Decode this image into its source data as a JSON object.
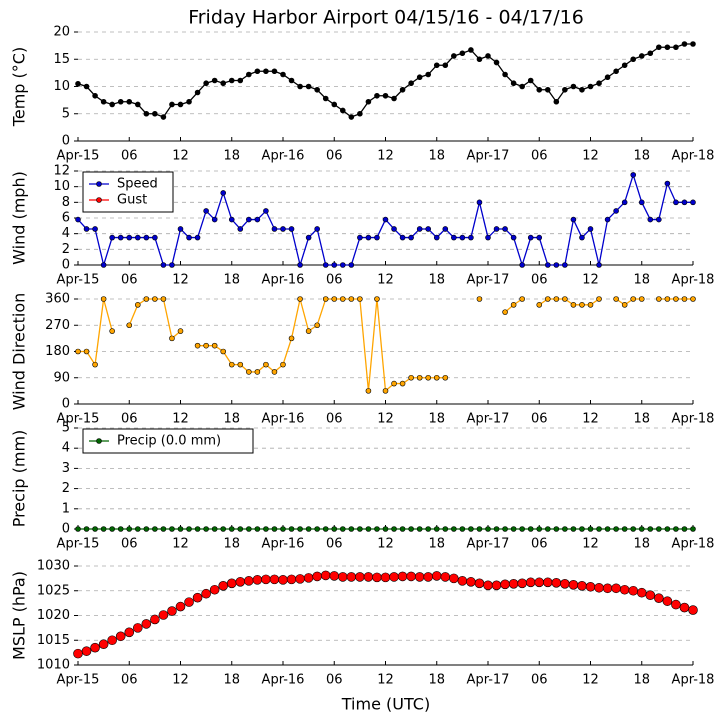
{
  "chart_data": [
    {
      "type": "line",
      "title": "Friday Harbor Airport 04/15/16 - 04/17/16",
      "ylabel": "Temp (°C)",
      "x": [
        0,
        1,
        2,
        3,
        4,
        5,
        6,
        7,
        8,
        9,
        10,
        11,
        12,
        13,
        14,
        15,
        16,
        17,
        18,
        19,
        20,
        21,
        22,
        23,
        24,
        25,
        26,
        27,
        28,
        29,
        30,
        31,
        32,
        33,
        34,
        35,
        36,
        37,
        38,
        39,
        40,
        41,
        42,
        43,
        44,
        45,
        46,
        47,
        48,
        49,
        50,
        51,
        52,
        53,
        54,
        55,
        56,
        57,
        58,
        59,
        60,
        61,
        62,
        63,
        64,
        65,
        66,
        67,
        68,
        69,
        70,
        71,
        72
      ],
      "xlim": [
        0,
        72
      ],
      "xticks": [
        {
          "value": 0,
          "label": "Apr-15"
        },
        {
          "value": 6,
          "label": "06"
        },
        {
          "value": 12,
          "label": "12"
        },
        {
          "value": 18,
          "label": "18"
        },
        {
          "value": 24,
          "label": "Apr-16"
        },
        {
          "value": 30,
          "label": "06"
        },
        {
          "value": 36,
          "label": "12"
        },
        {
          "value": 42,
          "label": "18"
        },
        {
          "value": 48,
          "label": "Apr-17"
        },
        {
          "value": 54,
          "label": "06"
        },
        {
          "value": 60,
          "label": "12"
        },
        {
          "value": 66,
          "label": "18"
        },
        {
          "value": 72,
          "label": "Apr-18"
        }
      ],
      "ylim": [
        0,
        20
      ],
      "yticks": [
        0,
        5,
        10,
        15,
        20
      ],
      "grid": true,
      "series": [
        {
          "color": "#000000",
          "marker_size": 2.5,
          "line": true,
          "values": [
            10.5,
            10,
            8.3,
            7.2,
            6.7,
            7.2,
            7.2,
            6.7,
            5,
            5,
            4.4,
            6.7,
            6.7,
            7.2,
            8.9,
            10.6,
            11.1,
            10.6,
            11.1,
            11.1,
            12.2,
            12.8,
            12.8,
            12.8,
            12.2,
            11.1,
            10,
            10,
            9.4,
            7.8,
            6.7,
            5.6,
            4.4,
            5,
            7.2,
            8.3,
            8.3,
            7.8,
            9.4,
            10.6,
            11.7,
            12.2,
            13.9,
            13.9,
            15.6,
            16.1,
            16.7,
            15,
            15.6,
            14.4,
            12.2,
            10.6,
            10,
            11.1,
            9.4,
            9.4,
            7.2,
            9.4,
            10,
            9.4,
            10,
            10.6,
            11.7,
            12.8,
            13.9,
            15,
            15.6,
            16.1,
            17.2,
            17.2,
            17.2,
            17.8,
            17.8
          ]
        }
      ]
    },
    {
      "type": "line",
      "ylabel": "Wind (mph)",
      "legend": "upper left",
      "x": [
        0,
        1,
        2,
        3,
        4,
        5,
        6,
        7,
        8,
        9,
        10,
        11,
        12,
        13,
        14,
        15,
        16,
        17,
        18,
        19,
        20,
        21,
        22,
        23,
        24,
        25,
        26,
        27,
        28,
        29,
        30,
        31,
        32,
        33,
        34,
        35,
        36,
        37,
        38,
        39,
        40,
        41,
        42,
        43,
        44,
        45,
        46,
        47,
        48,
        49,
        50,
        51,
        52,
        53,
        54,
        55,
        56,
        57,
        58,
        59,
        60,
        61,
        62,
        63,
        64,
        65,
        66,
        67,
        68,
        69,
        70,
        71,
        72
      ],
      "xlim": [
        0,
        72
      ],
      "xticks": [
        {
          "value": 0,
          "label": "Apr-15"
        },
        {
          "value": 6,
          "label": "06"
        },
        {
          "value": 12,
          "label": "12"
        },
        {
          "value": 18,
          "label": "18"
        },
        {
          "value": 24,
          "label": "Apr-16"
        },
        {
          "value": 30,
          "label": "06"
        },
        {
          "value": 36,
          "label": "12"
        },
        {
          "value": 42,
          "label": "18"
        },
        {
          "value": 48,
          "label": "Apr-17"
        },
        {
          "value": 54,
          "label": "06"
        },
        {
          "value": 60,
          "label": "12"
        },
        {
          "value": 66,
          "label": "18"
        },
        {
          "value": 72,
          "label": "Apr-18"
        }
      ],
      "ylim": [
        0,
        12
      ],
      "yticks": [
        0,
        2,
        4,
        6,
        8,
        10,
        12
      ],
      "grid": true,
      "series": [
        {
          "name": "Speed",
          "color": "#0000cc",
          "marker_size": 2.5,
          "line": true,
          "values": [
            5.8,
            4.6,
            4.6,
            0,
            3.5,
            3.5,
            3.5,
            3.5,
            3.5,
            3.5,
            0,
            0,
            4.6,
            3.5,
            3.5,
            6.9,
            5.8,
            9.2,
            5.8,
            4.6,
            5.8,
            5.8,
            6.9,
            4.6,
            4.6,
            4.6,
            0,
            3.5,
            4.6,
            0,
            0,
            0,
            0,
            3.5,
            3.5,
            3.5,
            5.8,
            4.6,
            3.5,
            3.5,
            4.6,
            4.6,
            3.5,
            4.6,
            3.5,
            3.5,
            3.5,
            8,
            3.5,
            4.6,
            4.6,
            3.5,
            0,
            3.5,
            3.5,
            0,
            0,
            0,
            5.8,
            3.5,
            4.6,
            0,
            5.8,
            6.9,
            8,
            11.5,
            8,
            5.8,
            5.8,
            10.4,
            8,
            8,
            8
          ]
        },
        {
          "name": "Gust",
          "color": "#ff0000",
          "marker_size": 2.5,
          "line": true,
          "values": [
            null,
            null,
            null,
            null,
            null,
            null,
            null,
            null,
            null,
            null,
            null,
            null,
            null,
            null,
            null,
            null,
            null,
            null,
            null,
            null,
            null,
            null,
            null,
            null,
            null,
            null,
            null,
            null,
            null,
            null,
            null,
            null,
            null,
            null,
            null,
            null,
            null,
            null,
            null,
            null,
            null,
            null,
            null,
            null,
            null,
            null,
            null,
            null,
            null,
            null,
            null,
            null,
            null,
            null,
            null,
            null,
            null,
            null,
            null,
            null,
            null,
            null,
            null,
            null,
            null,
            null,
            null,
            null,
            null,
            null,
            null,
            null,
            null
          ]
        }
      ]
    },
    {
      "type": "line",
      "ylabel": "Wind Direction",
      "x": [
        0,
        1,
        2,
        3,
        4,
        5,
        6,
        7,
        8,
        9,
        10,
        11,
        12,
        13,
        14,
        15,
        16,
        17,
        18,
        19,
        20,
        21,
        22,
        23,
        24,
        25,
        26,
        27,
        28,
        29,
        30,
        31,
        32,
        33,
        34,
        35,
        36,
        37,
        38,
        39,
        40,
        41,
        42,
        43,
        44,
        45,
        46,
        47,
        48,
        49,
        50,
        51,
        52,
        53,
        54,
        55,
        56,
        57,
        58,
        59,
        60,
        61,
        62,
        63,
        64,
        65,
        66,
        67,
        68,
        69,
        70,
        71,
        72
      ],
      "xlim": [
        0,
        72
      ],
      "xticks": [
        {
          "value": 0,
          "label": "Apr-15"
        },
        {
          "value": 6,
          "label": "06"
        },
        {
          "value": 12,
          "label": "12"
        },
        {
          "value": 18,
          "label": "18"
        },
        {
          "value": 24,
          "label": "Apr-16"
        },
        {
          "value": 30,
          "label": "06"
        },
        {
          "value": 36,
          "label": "12"
        },
        {
          "value": 42,
          "label": "18"
        },
        {
          "value": 48,
          "label": "Apr-17"
        },
        {
          "value": 54,
          "label": "06"
        },
        {
          "value": 60,
          "label": "12"
        },
        {
          "value": 66,
          "label": "18"
        },
        {
          "value": 72,
          "label": "Apr-18"
        }
      ],
      "ylim": [
        0,
        360
      ],
      "yticks": [
        0,
        90,
        180,
        270,
        360
      ],
      "grid": true,
      "series": [
        {
          "color": "#ffa500",
          "marker_size": 2.5,
          "line": true,
          "values": [
            180,
            180,
            135,
            360,
            250,
            null,
            270,
            340,
            360,
            360,
            360,
            225,
            250,
            null,
            200,
            200,
            200,
            180,
            135,
            135,
            110,
            110,
            135,
            110,
            135,
            225,
            360,
            250,
            270,
            360,
            360,
            360,
            360,
            360,
            45,
            360,
            45,
            70,
            70,
            90,
            90,
            90,
            90,
            90,
            null,
            null,
            null,
            360,
            null,
            null,
            315,
            340,
            360,
            null,
            340,
            360,
            360,
            360,
            340,
            340,
            340,
            360,
            null,
            360,
            340,
            360,
            360,
            null,
            360,
            360,
            360,
            360,
            360
          ]
        }
      ]
    },
    {
      "type": "line",
      "ylabel": "Precip (mm)",
      "legend": "upper left",
      "x": [
        0,
        1,
        2,
        3,
        4,
        5,
        6,
        7,
        8,
        9,
        10,
        11,
        12,
        13,
        14,
        15,
        16,
        17,
        18,
        19,
        20,
        21,
        22,
        23,
        24,
        25,
        26,
        27,
        28,
        29,
        30,
        31,
        32,
        33,
        34,
        35,
        36,
        37,
        38,
        39,
        40,
        41,
        42,
        43,
        44,
        45,
        46,
        47,
        48,
        49,
        50,
        51,
        52,
        53,
        54,
        55,
        56,
        57,
        58,
        59,
        60,
        61,
        62,
        63,
        64,
        65,
        66,
        67,
        68,
        69,
        70,
        71,
        72
      ],
      "xlim": [
        0,
        72
      ],
      "xticks": [
        {
          "value": 0,
          "label": "Apr-15"
        },
        {
          "value": 6,
          "label": "06"
        },
        {
          "value": 12,
          "label": "12"
        },
        {
          "value": 18,
          "label": "18"
        },
        {
          "value": 24,
          "label": "Apr-16"
        },
        {
          "value": 30,
          "label": "06"
        },
        {
          "value": 36,
          "label": "12"
        },
        {
          "value": 42,
          "label": "18"
        },
        {
          "value": 48,
          "label": "Apr-17"
        },
        {
          "value": 54,
          "label": "06"
        },
        {
          "value": 60,
          "label": "12"
        },
        {
          "value": 66,
          "label": "18"
        },
        {
          "value": 72,
          "label": "Apr-18"
        }
      ],
      "ylim": [
        0,
        5
      ],
      "yticks": [
        0,
        1,
        2,
        3,
        4,
        5
      ],
      "grid": true,
      "series": [
        {
          "name": "Precip (0.0 mm)",
          "color": "#006400",
          "marker_size": 2.5,
          "line": true,
          "values": [
            0,
            0,
            0,
            0,
            0,
            0,
            0,
            0,
            0,
            0,
            0,
            0,
            0,
            0,
            0,
            0,
            0,
            0,
            0,
            0,
            0,
            0,
            0,
            0,
            0,
            0,
            0,
            0,
            0,
            0,
            0,
            0,
            0,
            0,
            0,
            0,
            0,
            0,
            0,
            0,
            0,
            0,
            0,
            0,
            0,
            0,
            0,
            0,
            0,
            0,
            0,
            0,
            0,
            0,
            0,
            0,
            0,
            0,
            0,
            0,
            0,
            0,
            0,
            0,
            0,
            0,
            0,
            0,
            0,
            0,
            0,
            0,
            0
          ]
        }
      ]
    },
    {
      "type": "line",
      "ylabel": "MSLP (hPa)",
      "xlabel": "Time (UTC)",
      "x": [
        0,
        1,
        2,
        3,
        4,
        5,
        6,
        7,
        8,
        9,
        10,
        11,
        12,
        13,
        14,
        15,
        16,
        17,
        18,
        19,
        20,
        21,
        22,
        23,
        24,
        25,
        26,
        27,
        28,
        29,
        30,
        31,
        32,
        33,
        34,
        35,
        36,
        37,
        38,
        39,
        40,
        41,
        42,
        43,
        44,
        45,
        46,
        47,
        48,
        49,
        50,
        51,
        52,
        53,
        54,
        55,
        56,
        57,
        58,
        59,
        60,
        61,
        62,
        63,
        64,
        65,
        66,
        67,
        68,
        69,
        70,
        71,
        72
      ],
      "xlim": [
        0,
        72
      ],
      "xticks": [
        {
          "value": 0,
          "label": "Apr-15"
        },
        {
          "value": 6,
          "label": "06"
        },
        {
          "value": 12,
          "label": "12"
        },
        {
          "value": 18,
          "label": "18"
        },
        {
          "value": 24,
          "label": "Apr-16"
        },
        {
          "value": 30,
          "label": "06"
        },
        {
          "value": 36,
          "label": "12"
        },
        {
          "value": 42,
          "label": "18"
        },
        {
          "value": 48,
          "label": "Apr-17"
        },
        {
          "value": 54,
          "label": "06"
        },
        {
          "value": 60,
          "label": "12"
        },
        {
          "value": 66,
          "label": "18"
        },
        {
          "value": 72,
          "label": "Apr-18"
        }
      ],
      "ylim": [
        1010,
        1030
      ],
      "yticks": [
        1010,
        1015,
        1020,
        1025,
        1030
      ],
      "grid": true,
      "series": [
        {
          "color": "#ff0000",
          "marker_size": 4.5,
          "line": false,
          "values": [
            1012.3,
            1012.8,
            1013.5,
            1014.2,
            1015,
            1015.8,
            1016.6,
            1017.5,
            1018.3,
            1019.2,
            1020.1,
            1020.9,
            1021.8,
            1022.7,
            1023.6,
            1024.4,
            1025.2,
            1026,
            1026.5,
            1026.8,
            1027,
            1027.2,
            1027.3,
            1027.3,
            1027.2,
            1027.3,
            1027.4,
            1027.6,
            1027.9,
            1028.1,
            1028,
            1027.8,
            1027.8,
            1027.8,
            1027.8,
            1027.7,
            1027.7,
            1027.8,
            1027.9,
            1027.9,
            1027.8,
            1027.8,
            1028,
            1027.8,
            1027.5,
            1027,
            1026.8,
            1026.5,
            1026.1,
            1026.1,
            1026.3,
            1026.4,
            1026.5,
            1026.7,
            1026.7,
            1026.7,
            1026.6,
            1026.4,
            1026.2,
            1026,
            1025.8,
            1025.6,
            1025.5,
            1025.5,
            1025.2,
            1025,
            1024.6,
            1024.1,
            1023.5,
            1022.9,
            1022.2,
            1021.6,
            1021.1
          ]
        }
      ]
    }
  ]
}
